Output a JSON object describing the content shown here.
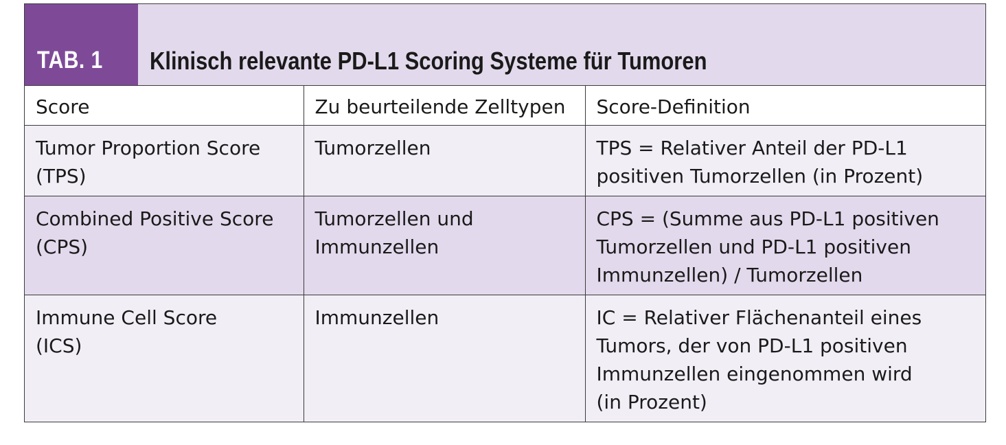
{
  "colors": {
    "accent": "#7e4a98",
    "header_bg": "#e3d9ec",
    "row_shade": "#e3d9ec",
    "row_light": "#f2eef6"
  },
  "header": {
    "tab_label": "TAB. 1",
    "title": "Klinisch relevante PD-L1 Scoring Systeme für Tumoren"
  },
  "table": {
    "columns": [
      "Score",
      "Zu beurteilende Zelltypen",
      "Score-Definition"
    ],
    "rows": [
      {
        "score": "Tumor Proportion Score\n(TPS)",
        "cells": "Tumorzellen",
        "definition": "TPS = Relativer Anteil der PD-L1\npositiven Tumorzellen (in Prozent)"
      },
      {
        "score": "Combined Positive Score\n(CPS)",
        "cells": "Tumorzellen und\nImmunzellen",
        "definition": "CPS = (Summe aus PD-L1 positiven\nTumorzellen und PD-L1 positiven\nImmunzellen) / Tumorzellen"
      },
      {
        "score": "Immune Cell Score\n(ICS)",
        "cells": "Immunzellen",
        "definition": "IC = Relativer Flächenanteil eines\nTumors, der von PD-L1 positiven\nImmunzellen eingenommen wird\n(in Prozent)"
      }
    ]
  }
}
